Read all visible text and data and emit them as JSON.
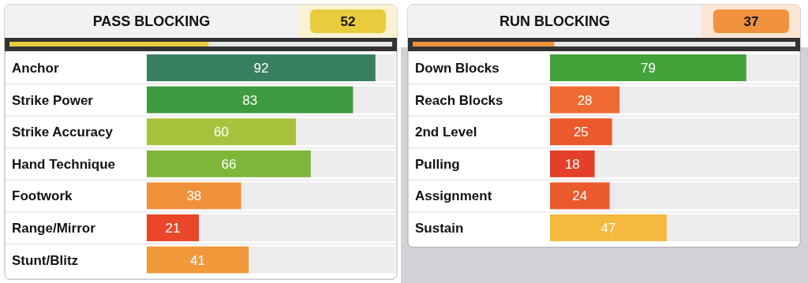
{
  "chart_data": [
    {
      "type": "bar",
      "orientation": "horizontal",
      "title": "PASS BLOCKING",
      "annotations": [
        "52"
      ],
      "categories": [
        "Anchor",
        "Strike Power",
        "Strike Accuracy",
        "Hand Technique",
        "Footwork",
        "Range/Mirror",
        "Stunt/Blitz"
      ],
      "values": [
        92,
        83,
        60,
        66,
        38,
        21,
        41
      ],
      "colors": [
        "#387f5f",
        "#3e9a3f",
        "#a9c23d",
        "#7db638",
        "#f0913a",
        "#e8472a",
        "#f0983a"
      ],
      "xlim": [
        0,
        100
      ],
      "tick_labels": "y",
      "data_labels": true
    },
    {
      "type": "bar",
      "orientation": "horizontal",
      "title": "RUN BLOCKING",
      "annotations": [
        "37"
      ],
      "categories": [
        "Down Blocks",
        "Reach Blocks",
        "2nd Level",
        "Pulling",
        "Assignment",
        "Sustain"
      ],
      "values": [
        79,
        28,
        25,
        18,
        24,
        47
      ],
      "colors": [
        "#44a23b",
        "#ef6a30",
        "#eb5a2c",
        "#e43f2a",
        "#eb5a2c",
        "#f4b93d"
      ],
      "xlim": [
        0,
        100
      ],
      "tick_labels": "y",
      "data_labels": true
    }
  ]
}
